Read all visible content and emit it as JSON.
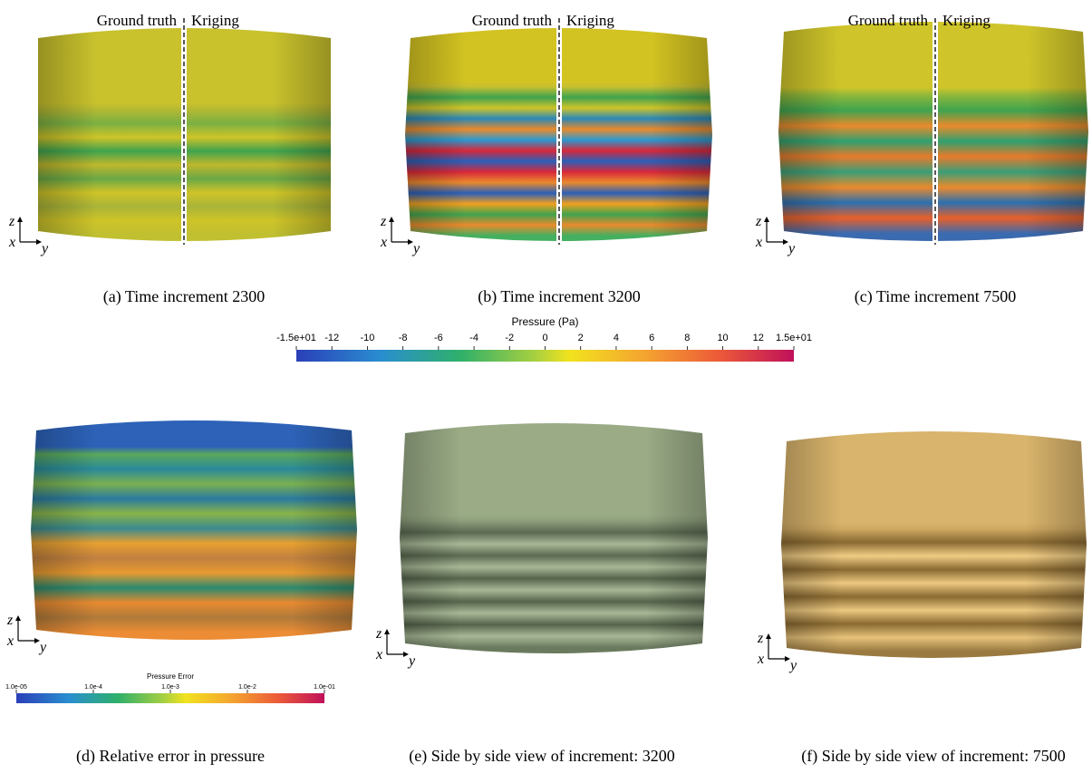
{
  "panels": [
    {
      "caption": "(a) Time increment 2300",
      "left_label": "Ground truth",
      "right_label": "Kriging"
    },
    {
      "caption": "(b) Time increment 3200",
      "left_label": "Ground truth",
      "right_label": "Kriging"
    },
    {
      "caption": "(c) Time increment 7500",
      "left_label": "Ground truth",
      "right_label": "Kriging"
    },
    {
      "caption": "(d) Relative error in pressure"
    },
    {
      "caption": "(e) Side by side view of increment: 3200"
    },
    {
      "caption": "(f) Side by side view of increment: 7500"
    }
  ],
  "axes": {
    "z": "z",
    "x": "x",
    "y": "y"
  },
  "colorbar": {
    "title": "Pressure (Pa)",
    "ticks": [
      "-1.5e+01",
      "-12",
      "-10",
      "-8",
      "-6",
      "-4",
      "-2",
      "0",
      "2",
      "4",
      "6",
      "8",
      "10",
      "12",
      "1.5e+01"
    ]
  },
  "error_colorbar": {
    "title": "Pressure Error",
    "ticks": [
      "1.0e-05",
      "1.0e-4",
      "1.0e-3",
      "1.0e-2",
      "1.0e-01"
    ]
  }
}
